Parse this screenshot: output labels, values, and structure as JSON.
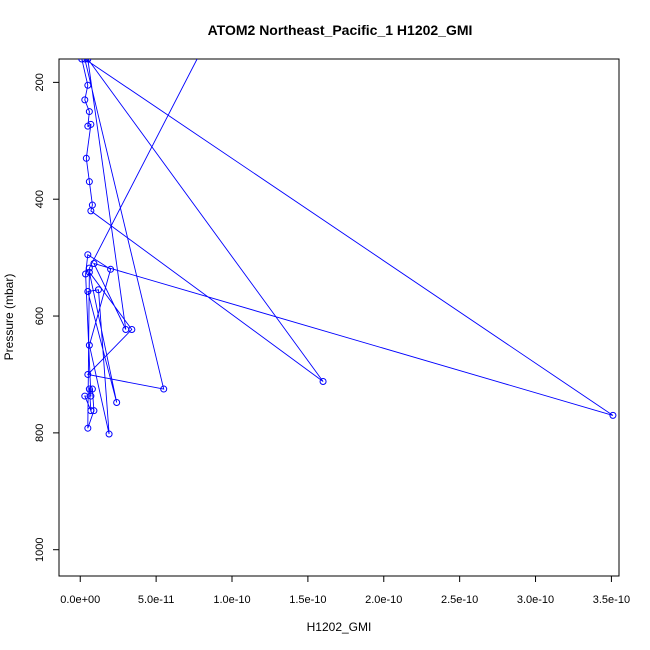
{
  "chart_data": {
    "type": "line",
    "title": "ATOM2 Northeast_Pacific_1 H1202_GMI",
    "xlabel": "H1202_GMI",
    "ylabel": "Pressure (mbar)",
    "xlim": [
      -1.4e-11,
      3.55e-10
    ],
    "ylim": [
      1045,
      160
    ],
    "y_reversed": true,
    "x_ticks": [
      0,
      5e-11,
      1e-10,
      1.5e-10,
      2e-10,
      2.5e-10,
      3e-10,
      3.5e-10
    ],
    "x_tick_labels": [
      "0.0e+00",
      "5.0e-11",
      "1.0e-10",
      "1.5e-10",
      "2.0e-10",
      "2.5e-10",
      "3.0e-10",
      "3.5e-10"
    ],
    "y_ticks": [
      200,
      400,
      600,
      800,
      1000
    ],
    "y_tick_labels": [
      "200",
      "400",
      "600",
      "800",
      "1000"
    ],
    "grid": false,
    "series": [
      {
        "color": "#0000ff",
        "points": [
          [
            1e-12,
            160
          ],
          [
            3e-12,
            160
          ],
          [
            5e-12,
            160
          ],
          [
            5e-12,
            205
          ],
          [
            3e-12,
            230
          ],
          [
            6e-12,
            250
          ],
          [
            5e-12,
            275
          ],
          [
            7e-12,
            272
          ],
          [
            4e-12,
            330
          ],
          [
            6e-12,
            370
          ],
          [
            8e-12,
            410
          ],
          [
            7e-12,
            420
          ],
          [
            5e-12,
            495
          ],
          [
            9e-12,
            510
          ],
          [
            6e-12,
            518
          ],
          [
            2e-11,
            520
          ],
          [
            6e-12,
            525
          ],
          [
            3.5e-12,
            528
          ],
          [
            5e-12,
            558
          ],
          [
            1.2e-11,
            555
          ],
          [
            3e-11,
            623
          ],
          [
            3.4e-11,
            623
          ],
          [
            6e-12,
            650
          ],
          [
            5e-12,
            700
          ],
          [
            5.5e-11,
            725
          ],
          [
            6e-12,
            725
          ],
          [
            8e-12,
            725
          ],
          [
            2.4e-11,
            748
          ],
          [
            3e-12,
            737
          ],
          [
            7e-12,
            737
          ],
          [
            7e-12,
            762
          ],
          [
            9e-12,
            762
          ],
          [
            1.9e-11,
            802
          ],
          [
            5e-12,
            792
          ],
          [
            1.6e-10,
            712
          ],
          [
            3.51e-10,
            770
          ]
        ],
        "path": [
          [
            1e-12,
            160
          ],
          [
            5e-12,
            205
          ],
          [
            3e-12,
            230
          ],
          [
            6e-12,
            250
          ],
          [
            5e-12,
            275
          ],
          [
            7e-12,
            272
          ],
          [
            4e-12,
            330
          ],
          [
            6e-12,
            370
          ],
          [
            8e-12,
            410
          ],
          [
            7e-12,
            420
          ],
          [
            1.6e-10,
            712
          ],
          [
            5e-12,
            160
          ],
          [
            3e-11,
            623
          ],
          [
            9e-12,
            510
          ],
          [
            3.51e-10,
            770
          ],
          [
            3e-12,
            160
          ],
          [
            5.5e-11,
            725
          ],
          [
            5e-12,
            700
          ],
          [
            3.4e-11,
            623
          ],
          [
            6e-12,
            525
          ],
          [
            2.4e-11,
            748
          ],
          [
            5e-12,
            558
          ],
          [
            1.2e-11,
            555
          ],
          [
            1.9e-11,
            802
          ],
          [
            6e-12,
            650
          ],
          [
            2e-11,
            520
          ],
          [
            5e-12,
            495
          ],
          [
            3.5e-12,
            528
          ],
          [
            7e-12,
            737
          ],
          [
            3e-12,
            737
          ],
          [
            7e-12,
            762
          ],
          [
            6e-12,
            725
          ],
          [
            8e-12,
            725
          ],
          [
            9e-12,
            762
          ],
          [
            5e-12,
            792
          ],
          [
            6e-12,
            518
          ],
          [
            7.7e-11,
            160
          ]
        ]
      }
    ]
  }
}
